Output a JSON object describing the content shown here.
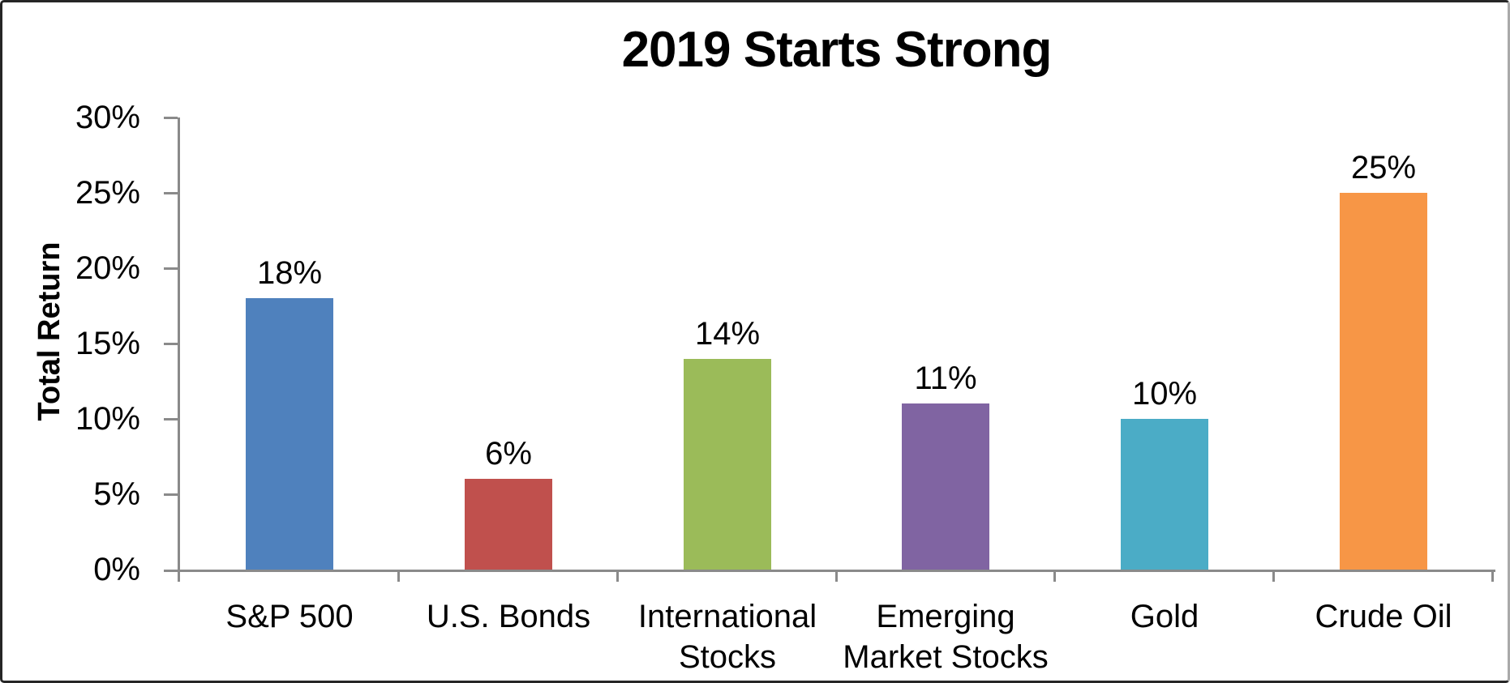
{
  "chart_data": {
    "type": "bar",
    "title": "2019 Starts Strong",
    "ylabel": "Total Return",
    "xlabel": "",
    "categories": [
      "S&P 500",
      "U.S. Bonds",
      "International Stocks",
      "Emerging Market Stocks",
      "Gold",
      "Crude Oil"
    ],
    "category_lines": [
      [
        "S&P 500"
      ],
      [
        "U.S. Bonds"
      ],
      [
        "International",
        "Stocks"
      ],
      [
        "Emerging",
        "Market Stocks"
      ],
      [
        "Gold"
      ],
      [
        "Crude Oil"
      ]
    ],
    "values": [
      18,
      6,
      14,
      11,
      10,
      25
    ],
    "data_labels": [
      "18%",
      "6%",
      "14%",
      "11%",
      "10%",
      "25%"
    ],
    "bar_colors": [
      "#4F81BD",
      "#C0504D",
      "#9BBB59",
      "#8064A2",
      "#4BACC6",
      "#F79646"
    ],
    "ylim": [
      0,
      30
    ],
    "yticks": {
      "values": [
        30,
        25,
        20,
        15,
        10,
        5,
        0
      ],
      "labels": [
        "30%",
        "25%",
        "20%",
        "15%",
        "10%",
        "5%",
        "0%"
      ]
    },
    "grid": false,
    "legend": false,
    "axis_color": "#8a8a8a",
    "text_color": "#000000"
  }
}
